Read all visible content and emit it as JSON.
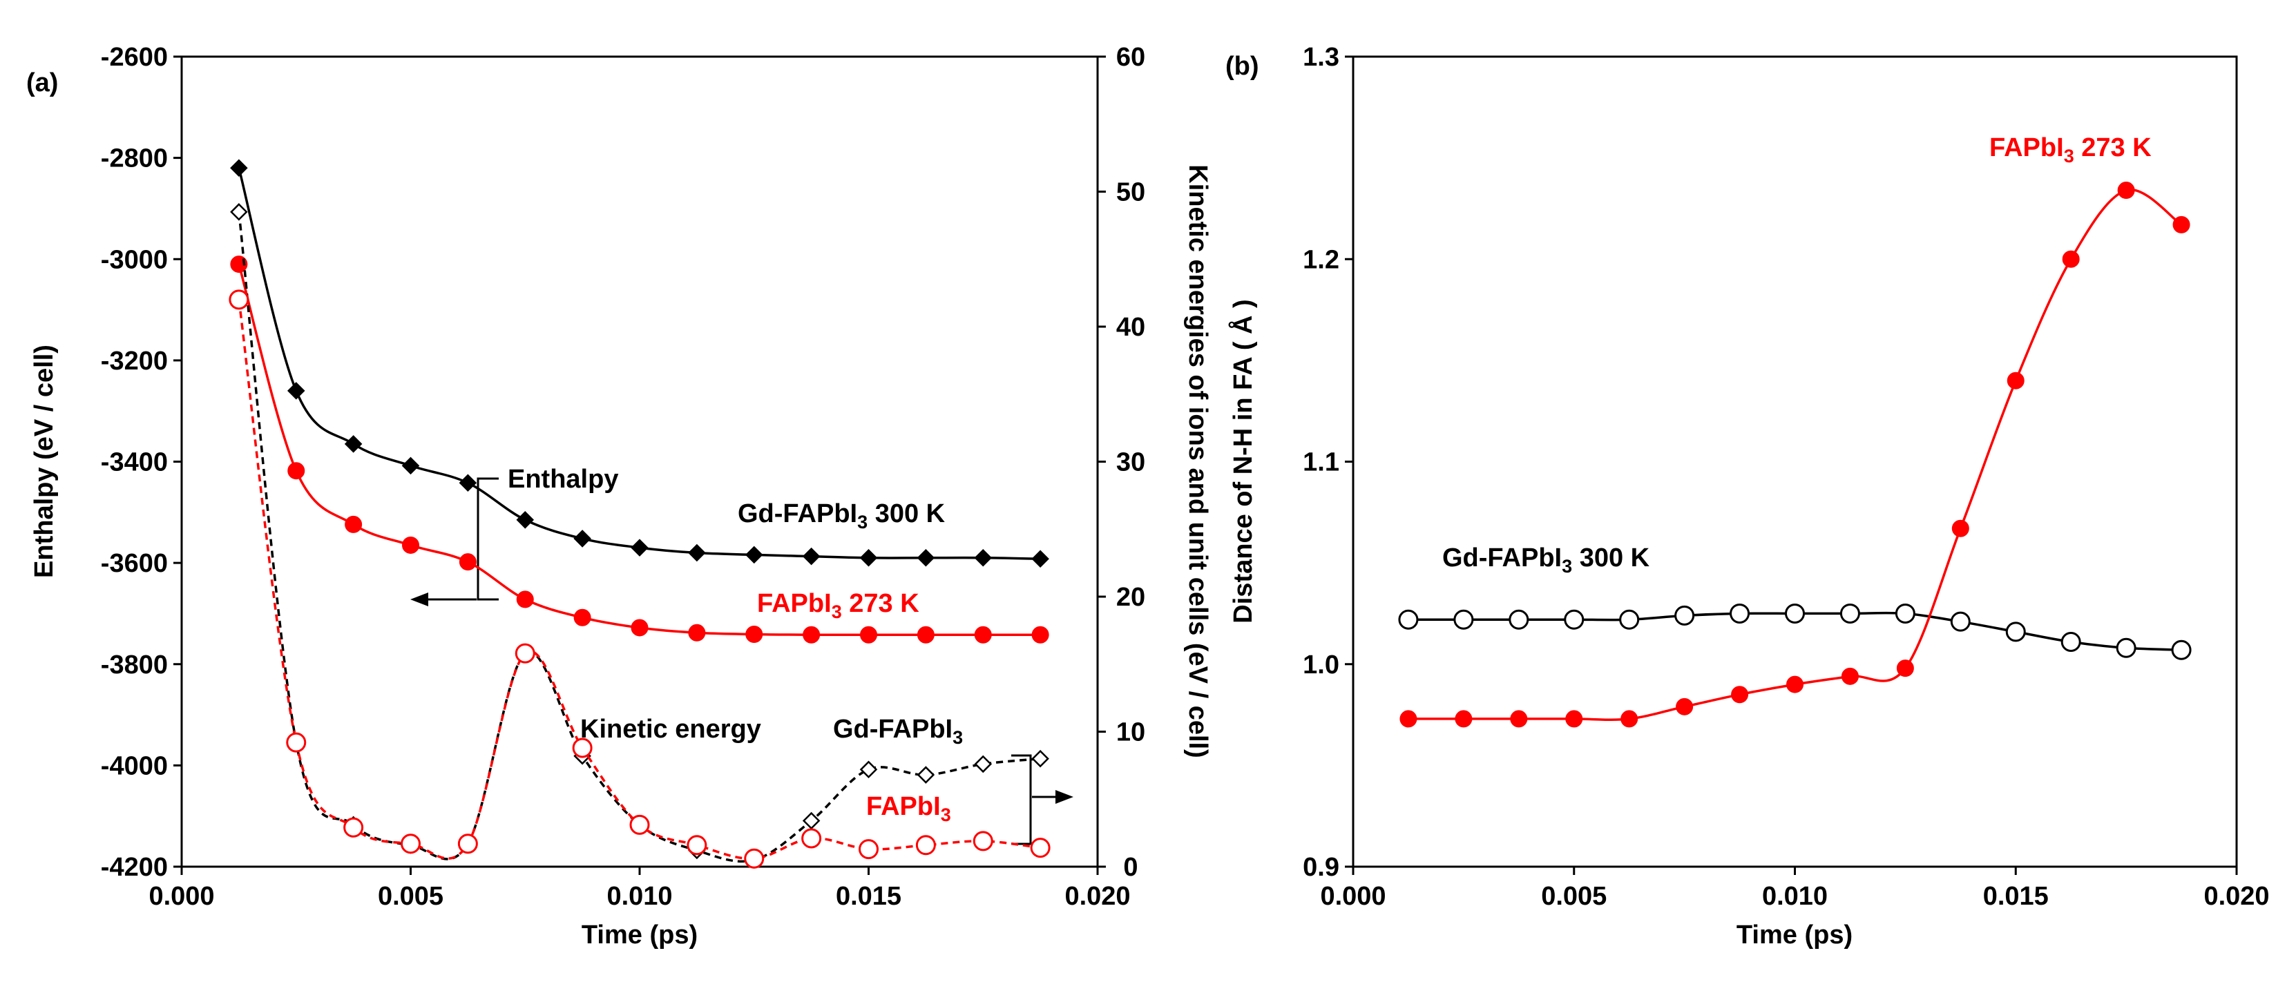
{
  "colors": {
    "black": "#000000",
    "red": "#ff0000",
    "white": "#ffffff"
  },
  "chart_data": [
    {
      "panel_label": "(a)",
      "type": "line",
      "xlabel": "Time (ps)",
      "ylabel": "Enthalpy (eV / cell)",
      "y2label": "Kinetic energies of ions and unit cells (eV / cell)",
      "xlim": [
        0.0,
        0.02
      ],
      "ylim": [
        -4200,
        -2600
      ],
      "y2lim": [
        0,
        60
      ],
      "x_ticks": [
        "0.000",
        "0.005",
        "0.010",
        "0.015",
        "0.020"
      ],
      "y_ticks": [
        "-2600",
        "-2800",
        "-3000",
        "-3200",
        "-3400",
        "-3600",
        "-3800",
        "-4000",
        "-4200"
      ],
      "y2_ticks": [
        "60",
        "50",
        "40",
        "30",
        "20",
        "10",
        "0"
      ],
      "x": [
        0.00125,
        0.0025,
        0.00375,
        0.005,
        0.00625,
        0.0075,
        0.00875,
        0.01,
        0.01125,
        0.0125,
        0.01375,
        0.015,
        0.01625,
        0.0175,
        0.01875
      ],
      "series": [
        {
          "name": "Gd-FAPbI3 300 K enthalpy",
          "axis": "left",
          "color": "#000000",
          "marker": "diamond-filled",
          "line": "solid",
          "values": [
            -2820,
            -3260,
            -3365,
            -3408,
            -3442,
            -3515,
            -3552,
            -3570,
            -3580,
            -3584,
            -3587,
            -3590,
            -3590,
            -3590,
            -3592
          ]
        },
        {
          "name": "FAPbI3 273 K enthalpy",
          "axis": "left",
          "color": "#ff0000",
          "marker": "circle-filled",
          "line": "solid",
          "values": [
            -3010,
            -3418,
            -3524,
            -3565,
            -3598,
            -3672,
            -3708,
            -3728,
            -3738,
            -3741,
            -3742,
            -3742,
            -3742,
            -3742,
            -3742
          ]
        },
        {
          "name": "Gd-FAPbI3 kinetic energy",
          "axis": "right",
          "color": "#000000",
          "marker": "diamond-open",
          "line": "dashed",
          "values": [
            48.5,
            9.2,
            3.1,
            1.6,
            1.7,
            15.8,
            8.2,
            3.1,
            1.2,
            0.5,
            3.4,
            7.2,
            6.8,
            7.6,
            8.0
          ]
        },
        {
          "name": "FAPbI3 kinetic energy",
          "axis": "right",
          "color": "#ff0000",
          "marker": "circle-open",
          "line": "dashed",
          "values": [
            42.0,
            9.2,
            2.9,
            1.7,
            1.7,
            15.8,
            8.8,
            3.1,
            1.6,
            0.6,
            2.1,
            1.3,
            1.6,
            1.9,
            1.4
          ]
        }
      ],
      "annotations": {
        "enthalpy": "Enthalpy",
        "kinetic": "Kinetic energy",
        "gd_label_main": "Gd-FAPbI",
        "gd_label_sub": "3",
        "gd_label_tail": " 300 K",
        "fa_label_main": "FAPbI",
        "fa_label_sub": "3",
        "fa_label_tail": "  273 K",
        "gd_kin_main": "Gd-FAPbI",
        "gd_kin_sub": "3",
        "fa_kin_main": "FAPbI",
        "fa_kin_sub": "3"
      }
    },
    {
      "panel_label": "(b)",
      "type": "line",
      "xlabel": "Time (ps)",
      "ylabel": "Distance of N-H in FA ( Å )",
      "xlim": [
        0.0,
        0.02
      ],
      "ylim": [
        0.9,
        1.3
      ],
      "x_ticks": [
        "0.000",
        "0.005",
        "0.010",
        "0.015",
        "0.020"
      ],
      "y_ticks": [
        "1.3",
        "1.2",
        "1.1",
        "1.0",
        "0.9"
      ],
      "x": [
        0.00125,
        0.0025,
        0.00375,
        0.005,
        0.00625,
        0.0075,
        0.00875,
        0.01,
        0.01125,
        0.0125,
        0.01375,
        0.015,
        0.01625,
        0.0175,
        0.01875
      ],
      "series": [
        {
          "name": "Gd-FAPbI3 300 K",
          "color": "#000000",
          "marker": "circle-open",
          "line": "solid",
          "values": [
            1.022,
            1.022,
            1.022,
            1.022,
            1.022,
            1.024,
            1.025,
            1.025,
            1.025,
            1.025,
            1.021,
            1.016,
            1.011,
            1.008,
            1.007
          ]
        },
        {
          "name": "FAPbI3 273 K",
          "color": "#ff0000",
          "marker": "circle-filled",
          "line": "solid",
          "values": [
            0.973,
            0.973,
            0.973,
            0.973,
            0.973,
            0.979,
            0.985,
            0.99,
            0.994,
            0.998,
            1.067,
            1.14,
            1.2,
            1.234,
            1.217
          ]
        }
      ],
      "annotations": {
        "gd_label_main": "Gd-FAPbI",
        "gd_label_sub": "3",
        "gd_label_tail": " 300 K",
        "fa_label_main": "FAPbI",
        "fa_label_sub": "3",
        "fa_label_tail": "  273 K"
      }
    }
  ]
}
